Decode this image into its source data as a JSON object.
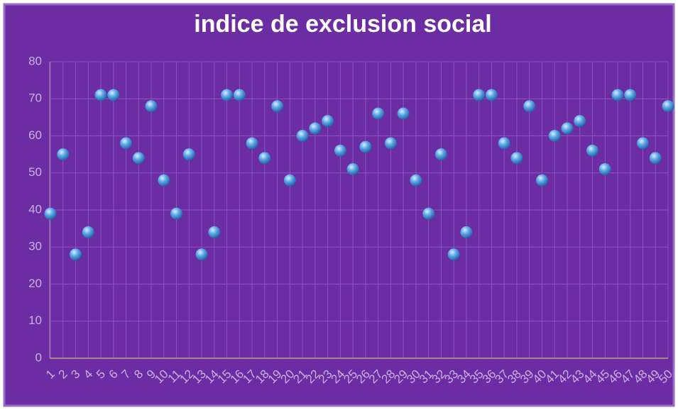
{
  "chart_data": {
    "type": "scatter",
    "title": "indice de exclusion social",
    "x": [
      1,
      2,
      3,
      4,
      5,
      6,
      7,
      8,
      9,
      10,
      11,
      12,
      13,
      14,
      15,
      16,
      17,
      18,
      19,
      20,
      21,
      22,
      23,
      24,
      25,
      26,
      27,
      28,
      29,
      30,
      31,
      32,
      33,
      34,
      35,
      36,
      37,
      38,
      39,
      40,
      41,
      42,
      43,
      44,
      45,
      46,
      47,
      48,
      49,
      50
    ],
    "values": [
      39,
      55,
      28,
      34,
      71,
      71,
      58,
      54,
      68,
      48,
      39,
      55,
      28,
      34,
      71,
      71,
      58,
      54,
      68,
      48,
      60,
      62,
      64,
      56,
      51,
      57,
      66,
      58,
      66,
      48,
      39,
      55,
      28,
      34,
      71,
      71,
      58,
      54,
      68,
      48,
      60,
      62,
      64,
      56,
      51,
      71,
      71,
      58,
      54,
      68
    ],
    "color": "#5fa8e8",
    "xlim": [
      1,
      50
    ],
    "xticks": [
      1,
      2,
      3,
      4,
      5,
      6,
      7,
      8,
      9,
      10,
      11,
      12,
      13,
      14,
      15,
      16,
      17,
      18,
      19,
      20,
      21,
      22,
      23,
      24,
      25,
      26,
      27,
      28,
      29,
      30,
      31,
      32,
      33,
      34,
      35,
      36,
      37,
      38,
      39,
      40,
      41,
      42,
      43,
      44,
      45,
      46,
      47,
      48,
      49,
      50
    ],
    "ylim": [
      0,
      80
    ],
    "yticks": [
      0,
      10,
      20,
      30,
      40,
      50,
      60,
      70,
      80
    ],
    "grid": true
  }
}
